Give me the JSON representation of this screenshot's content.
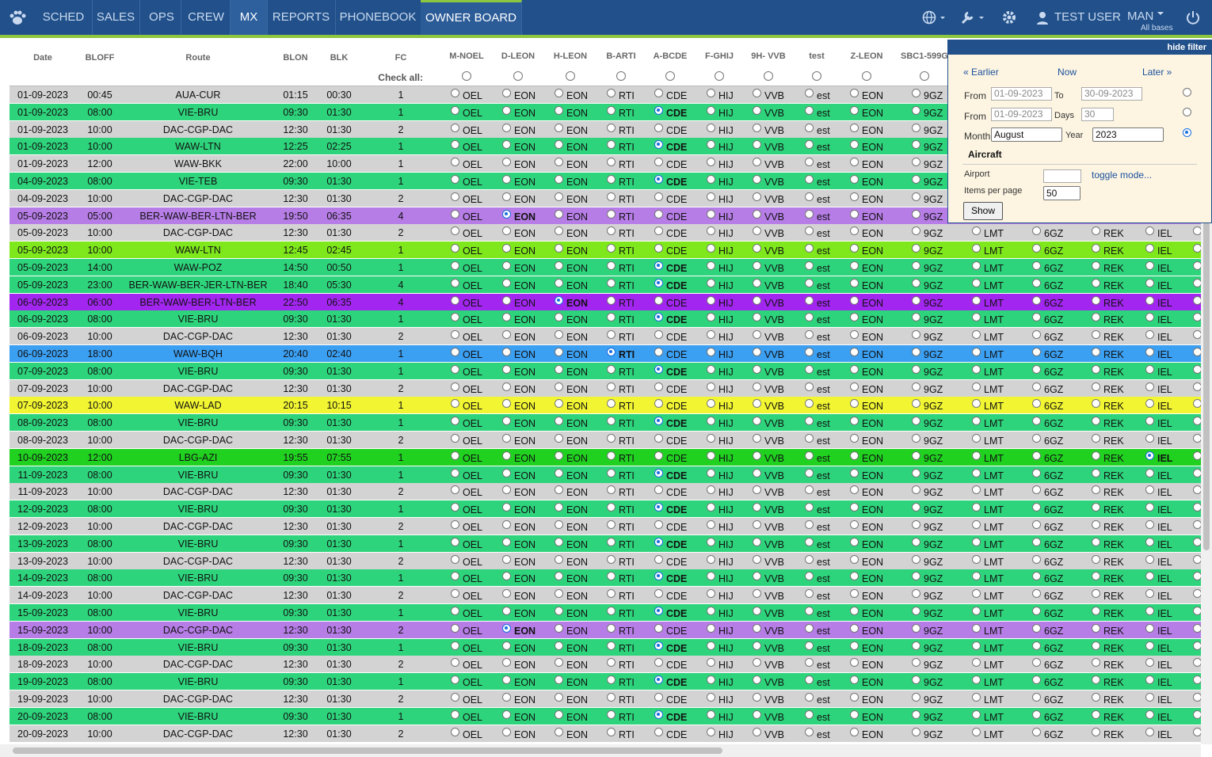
{
  "nav": {
    "items": [
      "SCHED",
      "SALES",
      "OPS",
      "CREW",
      "MX",
      "REPORTS",
      "PHONEBOOK",
      "OWNER BOARD"
    ],
    "active": "MX",
    "highlight": "OWNER BOARD",
    "user": "TEST USER",
    "base": "MAN",
    "base_sub": "All bases"
  },
  "table": {
    "headers": [
      "Date",
      "BLOFF",
      "Route",
      "BLON",
      "BLK",
      "FC"
    ],
    "aircraft_headers": [
      "M-NOEL",
      "D-LEON",
      "H-LEON",
      "B-ARTI",
      "A-BCDE",
      "F-GHIJ",
      "9H- VVB",
      "test",
      "Z-LEON",
      "SBC1-599G"
    ],
    "check_all": "Check all:",
    "codes": [
      "OEL",
      "EON",
      "EON",
      "RTI",
      "CDE",
      "HIJ",
      "VVB",
      "est",
      "EON",
      "9GZ",
      "LMT",
      "6GZ",
      "REK",
      "IEL"
    ],
    "rows": [
      {
        "cells": [
          "01-09-2023",
          "00:45",
          "AUA-CUR",
          "01:15",
          "00:30",
          "1"
        ],
        "color": "#d3d3d3"
      },
      {
        "cells": [
          "01-09-2023",
          "08:00",
          "VIE-BRU",
          "09:30",
          "01:30",
          "1"
        ],
        "color": "#2ed47c",
        "selected": 4
      },
      {
        "cells": [
          "01-09-2023",
          "10:00",
          "DAC-CGP-DAC",
          "12:30",
          "01:30",
          "2"
        ],
        "color": "#d3d3d3"
      },
      {
        "cells": [
          "01-09-2023",
          "10:00",
          "WAW-LTN",
          "12:25",
          "02:25",
          "1"
        ],
        "color": "#2ed47c",
        "selected": 4
      },
      {
        "cells": [
          "01-09-2023",
          "12:00",
          "WAW-BKK",
          "22:00",
          "10:00",
          "1"
        ],
        "color": "#d3d3d3"
      },
      {
        "cells": [
          "04-09-2023",
          "08:00",
          "VIE-TEB",
          "09:30",
          "01:30",
          "1"
        ],
        "color": "#2ed47c",
        "selected": 4
      },
      {
        "cells": [
          "04-09-2023",
          "10:00",
          "DAC-CGP-DAC",
          "12:30",
          "01:30",
          "2"
        ],
        "color": "#d3d3d3"
      },
      {
        "cells": [
          "05-09-2023",
          "05:00",
          "BER-WAW-BER-LTN-BER",
          "19:50",
          "06:35",
          "4"
        ],
        "color": "#b67de6",
        "selected": 1
      },
      {
        "cells": [
          "05-09-2023",
          "10:00",
          "DAC-CGP-DAC",
          "12:30",
          "01:30",
          "2"
        ],
        "color": "#d3d3d3"
      },
      {
        "cells": [
          "05-09-2023",
          "10:00",
          "WAW-LTN",
          "12:45",
          "02:45",
          "1"
        ],
        "color": "#7ee81c"
      },
      {
        "cells": [
          "05-09-2023",
          "14:00",
          "WAW-POZ",
          "14:50",
          "00:50",
          "1"
        ],
        "color": "#2ed47c",
        "selected": 4
      },
      {
        "cells": [
          "05-09-2023",
          "23:00",
          "BER-WAW-BER-JER-LTN-BER",
          "18:40",
          "05:30",
          "4"
        ],
        "color": "#2ed47c",
        "selected": 4
      },
      {
        "cells": [
          "06-09-2023",
          "06:00",
          "BER-WAW-BER-LTN-BER",
          "22:50",
          "06:35",
          "4"
        ],
        "color": "#a326f0",
        "selected": 2
      },
      {
        "cells": [
          "06-09-2023",
          "08:00",
          "VIE-BRU",
          "09:30",
          "01:30",
          "1"
        ],
        "color": "#2ed47c",
        "selected": 4
      },
      {
        "cells": [
          "06-09-2023",
          "10:00",
          "DAC-CGP-DAC",
          "12:30",
          "01:30",
          "2"
        ],
        "color": "#d3d3d3"
      },
      {
        "cells": [
          "06-09-2023",
          "18:00",
          "WAW-BQH",
          "20:40",
          "02:40",
          "1"
        ],
        "color": "#3b9ff2",
        "selected": 3
      },
      {
        "cells": [
          "07-09-2023",
          "08:00",
          "VIE-BRU",
          "09:30",
          "01:30",
          "1"
        ],
        "color": "#2ed47c",
        "selected": 4
      },
      {
        "cells": [
          "07-09-2023",
          "10:00",
          "DAC-CGP-DAC",
          "12:30",
          "01:30",
          "2"
        ],
        "color": "#d3d3d3"
      },
      {
        "cells": [
          "07-09-2023",
          "10:00",
          "WAW-LAD",
          "20:15",
          "10:15",
          "1"
        ],
        "color": "#f2f532"
      },
      {
        "cells": [
          "08-09-2023",
          "08:00",
          "VIE-BRU",
          "09:30",
          "01:30",
          "1"
        ],
        "color": "#2ed47c",
        "selected": 4
      },
      {
        "cells": [
          "08-09-2023",
          "10:00",
          "DAC-CGP-DAC",
          "12:30",
          "01:30",
          "2"
        ],
        "color": "#d3d3d3"
      },
      {
        "cells": [
          "10-09-2023",
          "12:00",
          "LBG-AZI",
          "19:55",
          "07:55",
          "1"
        ],
        "color": "#20d120",
        "selected": 13
      },
      {
        "cells": [
          "11-09-2023",
          "08:00",
          "VIE-BRU",
          "09:30",
          "01:30",
          "1"
        ],
        "color": "#2ed47c",
        "selected": 4
      },
      {
        "cells": [
          "11-09-2023",
          "10:00",
          "DAC-CGP-DAC",
          "12:30",
          "01:30",
          "2"
        ],
        "color": "#d3d3d3"
      },
      {
        "cells": [
          "12-09-2023",
          "08:00",
          "VIE-BRU",
          "09:30",
          "01:30",
          "1"
        ],
        "color": "#2ed47c",
        "selected": 4
      },
      {
        "cells": [
          "12-09-2023",
          "10:00",
          "DAC-CGP-DAC",
          "12:30",
          "01:30",
          "2"
        ],
        "color": "#d3d3d3"
      },
      {
        "cells": [
          "13-09-2023",
          "08:00",
          "VIE-BRU",
          "09:30",
          "01:30",
          "1"
        ],
        "color": "#2ed47c",
        "selected": 4
      },
      {
        "cells": [
          "13-09-2023",
          "10:00",
          "DAC-CGP-DAC",
          "12:30",
          "01:30",
          "2"
        ],
        "color": "#d3d3d3"
      },
      {
        "cells": [
          "14-09-2023",
          "08:00",
          "VIE-BRU",
          "09:30",
          "01:30",
          "1"
        ],
        "color": "#2ed47c",
        "selected": 4
      },
      {
        "cells": [
          "14-09-2023",
          "10:00",
          "DAC-CGP-DAC",
          "12:30",
          "01:30",
          "2"
        ],
        "color": "#d3d3d3"
      },
      {
        "cells": [
          "15-09-2023",
          "08:00",
          "VIE-BRU",
          "09:30",
          "01:30",
          "1"
        ],
        "color": "#2ed47c",
        "selected": 4
      },
      {
        "cells": [
          "15-09-2023",
          "10:00",
          "DAC-CGP-DAC",
          "12:30",
          "01:30",
          "2"
        ],
        "color": "#b67de6",
        "selected": 1
      },
      {
        "cells": [
          "18-09-2023",
          "08:00",
          "VIE-BRU",
          "09:30",
          "01:30",
          "1"
        ],
        "color": "#2ed47c",
        "selected": 4
      },
      {
        "cells": [
          "18-09-2023",
          "10:00",
          "DAC-CGP-DAC",
          "12:30",
          "01:30",
          "2"
        ],
        "color": "#d3d3d3"
      },
      {
        "cells": [
          "19-09-2023",
          "08:00",
          "VIE-BRU",
          "09:30",
          "01:30",
          "1"
        ],
        "color": "#2ed47c",
        "selected": 4
      },
      {
        "cells": [
          "19-09-2023",
          "10:00",
          "DAC-CGP-DAC",
          "12:30",
          "01:30",
          "2"
        ],
        "color": "#d3d3d3"
      },
      {
        "cells": [
          "20-09-2023",
          "08:00",
          "VIE-BRU",
          "09:30",
          "01:30",
          "1"
        ],
        "color": "#2ed47c",
        "selected": 4
      },
      {
        "cells": [
          "20-09-2023",
          "10:00",
          "DAC-CGP-DAC",
          "12:30",
          "01:30",
          "2"
        ],
        "color": "#d3d3d3"
      }
    ]
  },
  "filter": {
    "hide": "hide filter",
    "earlier": "« Earlier",
    "now": "Now",
    "later": "Later »",
    "range": {
      "from_label": "From",
      "from": "01-09-2023",
      "to_label": "To",
      "to": "30-09-2023"
    },
    "days": {
      "from_label": "From",
      "from": "01-09-2023",
      "days_label": "Days",
      "days": "30"
    },
    "month": {
      "month_label": "Month",
      "month": "August",
      "year_label": "Year",
      "year": "2023"
    },
    "aircraft": "Aircraft",
    "airport_label": "Airport",
    "toggle": "toggle mode...",
    "items_label": "Items per page",
    "items": "50",
    "show": "Show"
  }
}
